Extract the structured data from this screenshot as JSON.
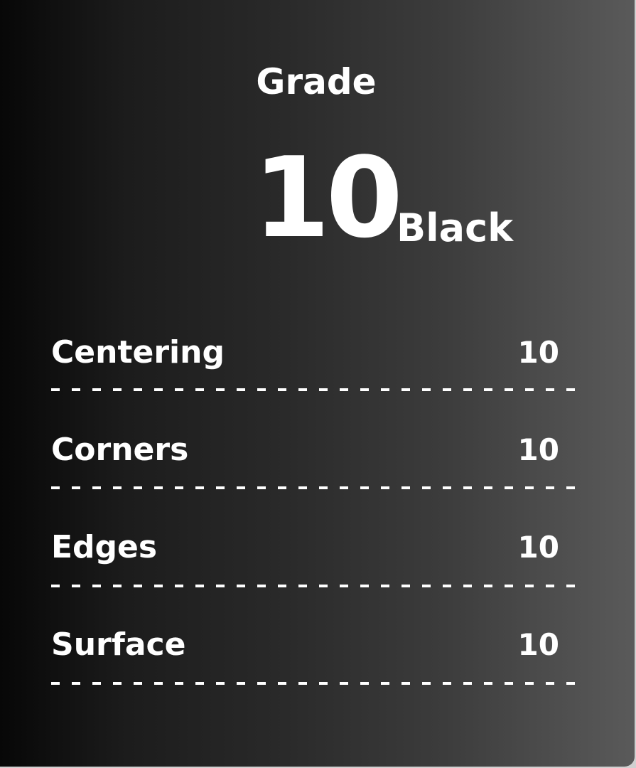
{
  "grade": {
    "label": "Grade",
    "value": "10",
    "tier": "Black"
  },
  "subgrades": [
    {
      "label": "Centering",
      "value": "10"
    },
    {
      "label": "Corners",
      "value": "10"
    },
    {
      "label": "Edges",
      "value": "10"
    },
    {
      "label": "Surface",
      "value": "10"
    }
  ]
}
